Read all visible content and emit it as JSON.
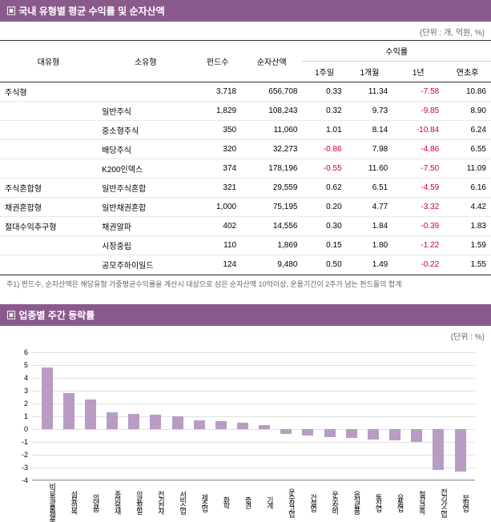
{
  "section1": {
    "title": "국내 유형별 평균 수익률 및 순자산액",
    "unit": "(단위 : 개, 억원, %)",
    "headers": {
      "cat1": "대유형",
      "cat2": "소유형",
      "fund_count": "펀드수",
      "nav": "순자산액",
      "return_group": "수익률",
      "w1": "1주일",
      "m1": "1개월",
      "y1": "1년",
      "ytd": "연초후"
    },
    "rows": [
      {
        "cat1": "주식형",
        "cat2": "",
        "funds": "3,718",
        "nav": "656,708",
        "w1": "0.33",
        "m1": "11.34",
        "y1": "-7.58",
        "ytd": "10.86",
        "y1neg": true
      },
      {
        "cat1": "",
        "cat2": "일반주식",
        "funds": "1,829",
        "nav": "108,243",
        "w1": "0.32",
        "m1": "9.73",
        "y1": "-9.85",
        "ytd": "8.90",
        "y1neg": true
      },
      {
        "cat1": "",
        "cat2": "중소형주식",
        "funds": "350",
        "nav": "11,060",
        "w1": "1.01",
        "m1": "8.14",
        "y1": "-10.84",
        "ytd": "6.24",
        "y1neg": true
      },
      {
        "cat1": "",
        "cat2": "배당주식",
        "funds": "320",
        "nav": "32,273",
        "w1": "-0.86",
        "m1": "7.98",
        "y1": "-4.86",
        "ytd": "6.55",
        "w1neg": true,
        "y1neg": true
      },
      {
        "cat1": "",
        "cat2": "K200인덱스",
        "funds": "374",
        "nav": "178,196",
        "w1": "-0.55",
        "m1": "11.60",
        "y1": "-7.50",
        "ytd": "11.09",
        "w1neg": true,
        "y1neg": true
      },
      {
        "cat1": "주식혼합형",
        "cat2": "일반주식혼합",
        "funds": "321",
        "nav": "29,559",
        "w1": "0.62",
        "m1": "6.51",
        "y1": "-4.59",
        "ytd": "6.16",
        "y1neg": true
      },
      {
        "cat1": "채권혼합형",
        "cat2": "일반채권혼합",
        "funds": "1,000",
        "nav": "75,195",
        "w1": "0.20",
        "m1": "4.77",
        "y1": "-3.32",
        "ytd": "4.42",
        "y1neg": true
      },
      {
        "cat1": "절대수익추구형",
        "cat2": "채권알파",
        "funds": "402",
        "nav": "14,556",
        "w1": "0.30",
        "m1": "1.84",
        "y1": "-0.39",
        "ytd": "1.83",
        "y1neg": true
      },
      {
        "cat1": "",
        "cat2": "시장중립",
        "funds": "110",
        "nav": "1,869",
        "w1": "0.15",
        "m1": "1.80",
        "y1": "-1.22",
        "ytd": "1.59",
        "y1neg": true
      },
      {
        "cat1": "",
        "cat2": "공모주하이일드",
        "funds": "124",
        "nav": "9,480",
        "w1": "0.50",
        "m1": "1.49",
        "y1": "-0.22",
        "ytd": "1.55",
        "y1neg": true
      }
    ],
    "footnote": "주1) 펀드수, 순자산액은 해당유형 가중평균수익률을 계산시 대상으로 삼은 순자산액 10억이상, 운용기간이 2주가 넘는 펀드들의 합계"
  },
  "section2": {
    "title": "업종별 주간 등락률",
    "unit": "(단위 : %)",
    "chart": {
      "type": "bar",
      "ymin": -4,
      "ymax": 6,
      "ytick_step": 1,
      "bar_color": "#b89cc4",
      "grid_color": "#e0e0e0",
      "categories": [
        "비금속광물제품",
        "섬유의복",
        "의약품",
        "종이목재",
        "의료정밀",
        "전기전자",
        "서비스업",
        "제조업",
        "화학",
        "증권",
        "기계",
        "운수창고업",
        "건설업",
        "운수장비",
        "음식료품",
        "통신업",
        "유통업",
        "철강금속",
        "전기가스업",
        "보험업"
      ],
      "values": [
        4.8,
        2.8,
        2.3,
        1.3,
        1.2,
        1.1,
        1.0,
        0.7,
        0.6,
        0.5,
        0.3,
        -0.4,
        -0.5,
        -0.6,
        -0.7,
        -0.8,
        -0.9,
        -1.0,
        -3.2,
        -3.3
      ]
    }
  }
}
